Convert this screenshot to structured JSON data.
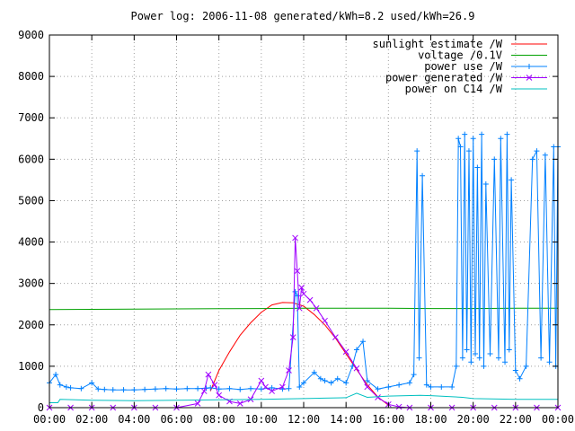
{
  "chart_data": {
    "type": "line",
    "title": "Power log: 2006-11-08 generated/kWh=8.2 used/kWh=26.9",
    "xlabel": "",
    "ylabel": "",
    "xlim": [
      0,
      24
    ],
    "ylim": [
      0,
      9000
    ],
    "grid": true,
    "legend_position": "top-right",
    "x_ticks": [
      "00:00",
      "02:00",
      "04:00",
      "06:00",
      "08:00",
      "10:00",
      "12:00",
      "14:00",
      "16:00",
      "18:00",
      "20:00",
      "22:00",
      "00:00"
    ],
    "y_ticks": [
      "0",
      "1000",
      "2000",
      "3000",
      "4000",
      "5000",
      "6000",
      "7000",
      "8000",
      "9000"
    ],
    "series": [
      {
        "name": "sunlight estimate /W",
        "color": "#ff0000",
        "marker": "none",
        "x": [
          7.6,
          8.0,
          8.5,
          9.0,
          9.5,
          10.0,
          10.5,
          11.0,
          11.5,
          12.0,
          12.5,
          13.0,
          13.5,
          14.0,
          14.5,
          15.0,
          15.5,
          16.0
        ],
        "y": [
          400,
          900,
          1350,
          1750,
          2050,
          2300,
          2480,
          2540,
          2530,
          2450,
          2250,
          2000,
          1680,
          1300,
          920,
          550,
          260,
          60
        ]
      },
      {
        "name": "voltage /0.1V",
        "color": "#00a000",
        "marker": "none",
        "x": [
          0,
          2,
          4,
          6,
          8,
          10,
          12,
          14,
          16,
          18,
          20,
          22,
          24
        ],
        "y": [
          2370,
          2375,
          2380,
          2385,
          2390,
          2395,
          2400,
          2400,
          2400,
          2395,
          2395,
          2400,
          2400
        ]
      },
      {
        "name": "power use /W",
        "color": "#0080ff",
        "marker": "+",
        "x": [
          0.0,
          0.3,
          0.5,
          0.8,
          1.0,
          1.5,
          2.0,
          2.3,
          2.6,
          3.0,
          3.5,
          4.0,
          4.5,
          5.0,
          5.5,
          6.0,
          6.5,
          7.0,
          7.4,
          7.6,
          8.0,
          8.5,
          9.0,
          9.5,
          10.0,
          10.5,
          11.0,
          11.3,
          11.6,
          11.7,
          11.8,
          12.0,
          12.5,
          12.8,
          13.0,
          13.3,
          13.6,
          14.0,
          14.3,
          14.5,
          14.8,
          15.0,
          15.5,
          16.0,
          16.5,
          17.0,
          17.2,
          17.35,
          17.45,
          17.6,
          17.8,
          18.0,
          18.5,
          19.0,
          19.2,
          19.3,
          19.4,
          19.5,
          19.6,
          19.7,
          19.8,
          19.9,
          20.0,
          20.1,
          20.2,
          20.3,
          20.4,
          20.5,
          20.6,
          20.8,
          21.0,
          21.2,
          21.3,
          21.5,
          21.6,
          21.7,
          21.8,
          22.0,
          22.2,
          22.5,
          22.8,
          23.0,
          23.2,
          23.4,
          23.6,
          23.8,
          23.9,
          24.0
        ],
        "y": [
          600,
          800,
          550,
          500,
          480,
          460,
          600,
          450,
          440,
          430,
          430,
          430,
          440,
          450,
          460,
          450,
          460,
          460,
          470,
          480,
          450,
          460,
          440,
          460,
          450,
          480,
          450,
          460,
          2800,
          2700,
          500,
          600,
          850,
          700,
          650,
          600,
          700,
          600,
          1000,
          1400,
          1600,
          650,
          450,
          500,
          550,
          600,
          800,
          6200,
          1200,
          5600,
          550,
          500,
          500,
          500,
          1000,
          6500,
          6300,
          1200,
          6600,
          1400,
          6200,
          1100,
          6500,
          1300,
          5800,
          1200,
          6600,
          1000,
          5400,
          1300,
          6000,
          1200,
          6500,
          1100,
          6600,
          1400,
          5500,
          900,
          700,
          1000,
          6000,
          6200,
          1200,
          6100,
          1100,
          6300,
          1000,
          6300
        ]
      },
      {
        "name": "power generated /W",
        "color": "#a000ff",
        "marker": "x",
        "x": [
          0.0,
          1.0,
          2.0,
          3.0,
          4.0,
          5.0,
          6.0,
          7.0,
          7.3,
          7.5,
          7.8,
          8.0,
          8.5,
          9.0,
          9.5,
          10.0,
          10.2,
          10.5,
          11.0,
          11.3,
          11.5,
          11.6,
          11.7,
          11.8,
          11.9,
          12.0,
          12.3,
          12.6,
          13.0,
          13.5,
          14.0,
          14.5,
          15.0,
          15.5,
          16.0,
          16.5,
          17.0,
          18.0,
          19.0,
          20.0,
          21.0,
          22.0,
          23.0,
          24.0
        ],
        "y": [
          0,
          0,
          0,
          0,
          0,
          0,
          0,
          100,
          400,
          800,
          550,
          300,
          150,
          100,
          200,
          650,
          500,
          400,
          500,
          900,
          1700,
          4100,
          3300,
          2400,
          2900,
          2750,
          2600,
          2400,
          2100,
          1700,
          1350,
          950,
          500,
          250,
          80,
          20,
          0,
          0,
          0,
          0,
          0,
          0,
          0,
          0
        ]
      },
      {
        "name": "power on C14 /W",
        "color": "#00c0c0",
        "marker": "none",
        "x": [
          0.0,
          0.4,
          0.5,
          2.0,
          4.0,
          6.0,
          8.0,
          10.0,
          12.0,
          13.0,
          14.0,
          14.5,
          15.0,
          16.0,
          17.5,
          18.0,
          19.5,
          20.0,
          22.0,
          24.0
        ],
        "y": [
          120,
          120,
          200,
          180,
          170,
          180,
          190,
          200,
          220,
          230,
          240,
          350,
          250,
          280,
          300,
          290,
          250,
          220,
          200,
          200
        ]
      }
    ]
  }
}
